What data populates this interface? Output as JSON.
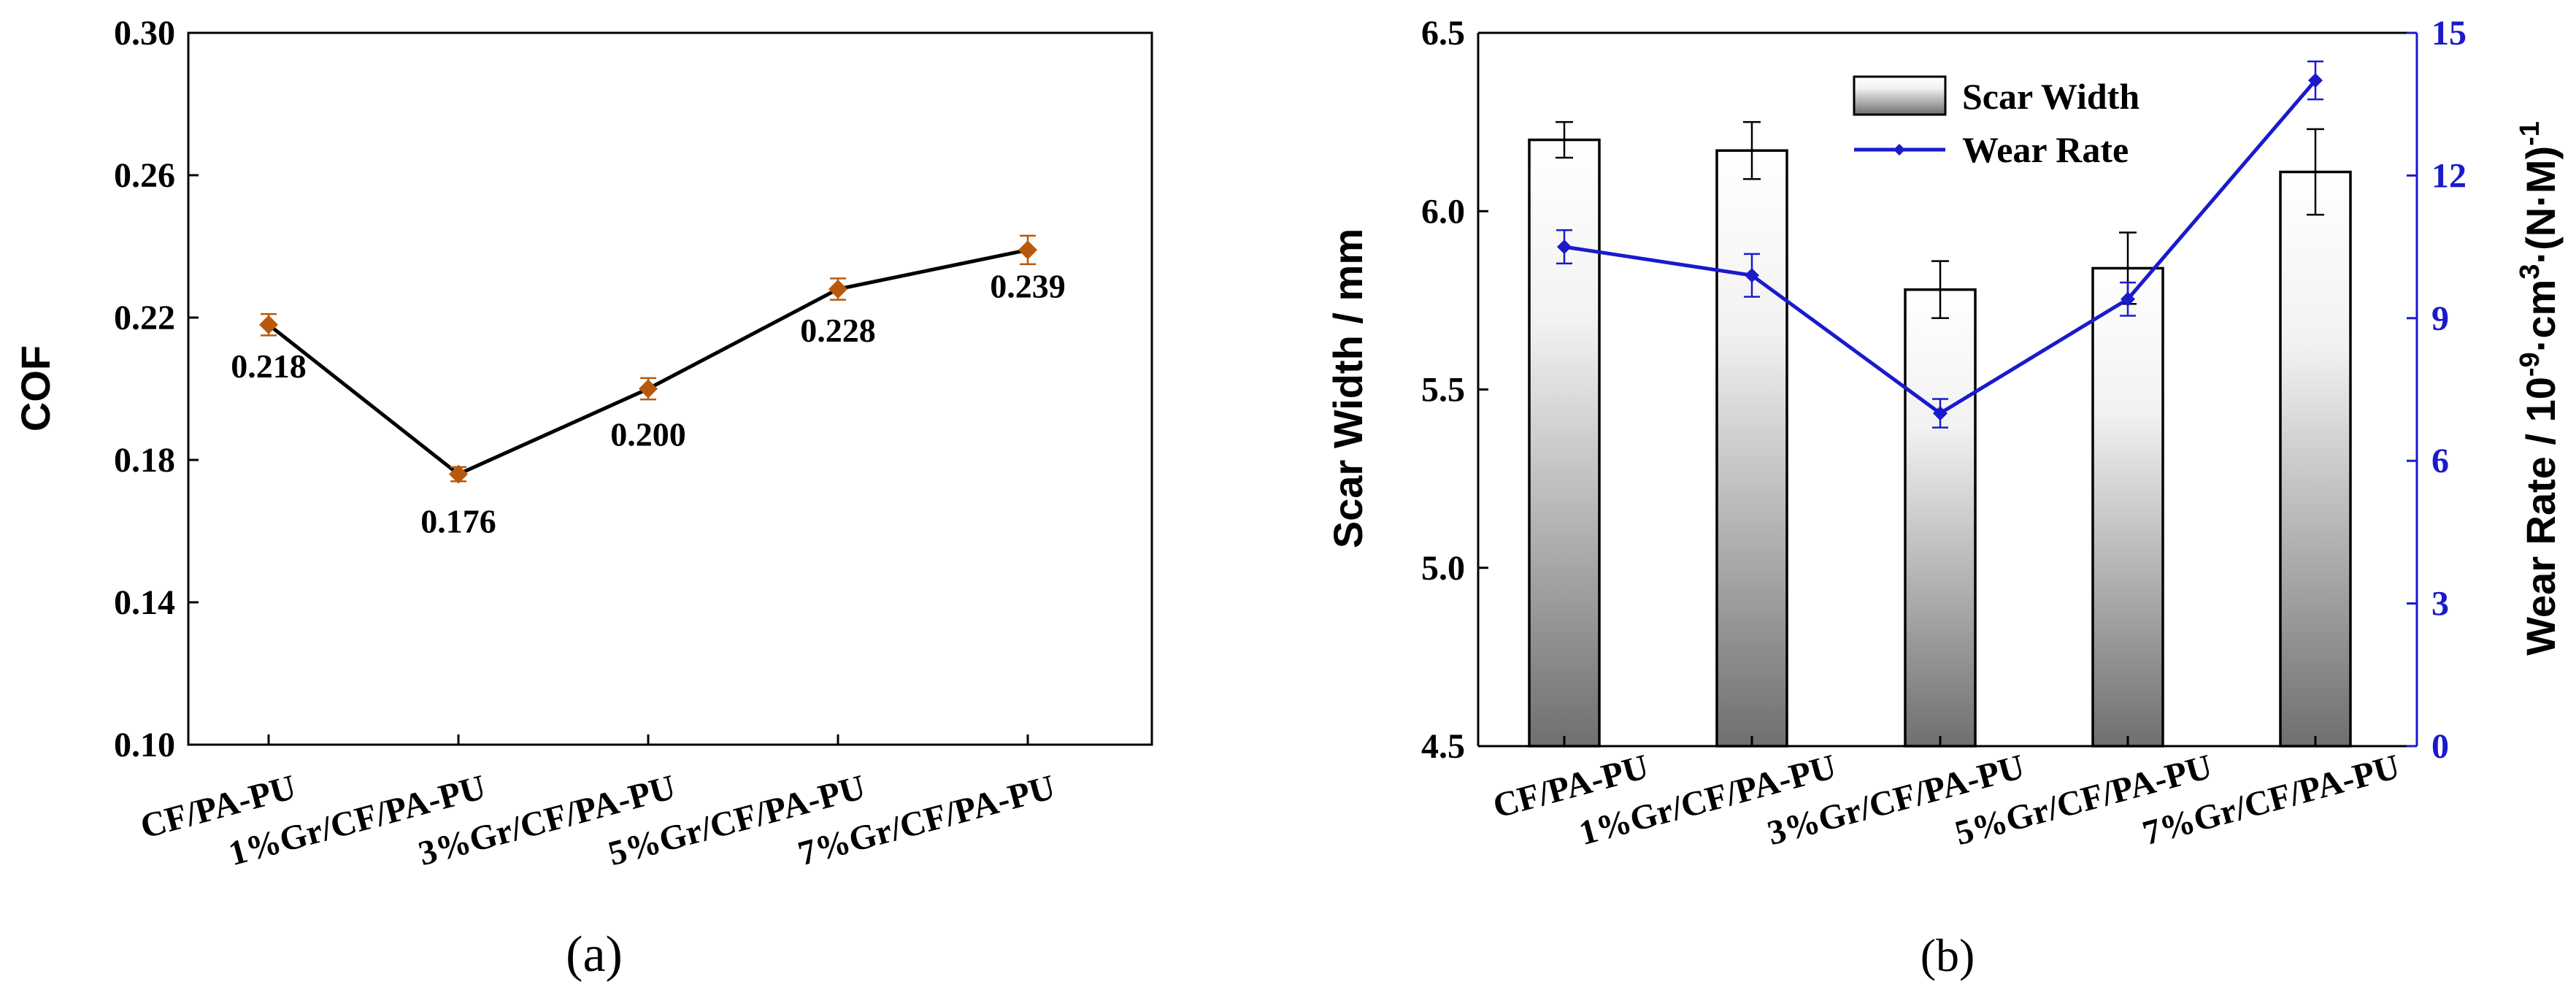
{
  "colors": {
    "cof_line": "#000000",
    "cof_marker": "#b8580c",
    "wear_line": "#1a1acc",
    "bar_edge": "#000000",
    "bar_top": "#ffffff",
    "bar_bottom": "#6f6f6f",
    "right_axis": "#1a1acc"
  },
  "chart_data": [
    {
      "type": "line",
      "caption": "(a)",
      "categories": [
        "CF/PA-PU",
        "1%Gr/CF/PA-PU",
        "3%Gr/CF/PA-PU",
        "5%Gr/CF/PA-PU",
        "7%Gr/CF/PA-PU"
      ],
      "series": [
        {
          "name": "COF",
          "values": [
            0.218,
            0.176,
            0.2,
            0.228,
            0.239
          ],
          "errors": [
            0.003,
            0.002,
            0.003,
            0.003,
            0.004
          ]
        }
      ],
      "data_labels": [
        "0.218",
        "0.176",
        "0.200",
        "0.228",
        "0.239"
      ],
      "ylabel": "COF",
      "ylim": [
        0.1,
        0.3
      ],
      "yticks": [
        0.1,
        0.14,
        0.18,
        0.22,
        0.26,
        0.3
      ],
      "ytick_labels": [
        "0.10",
        "0.14",
        "0.18",
        "0.22",
        "0.26",
        "0.30"
      ]
    },
    {
      "type": "bar",
      "caption": "(b)",
      "categories": [
        "CF/PA-PU",
        "1%Gr/CF/PA-PU",
        "3%Gr/CF/PA-PU",
        "5%Gr/CF/PA-PU",
        "7%Gr/CF/PA-PU"
      ],
      "series": [
        {
          "name": "Scar Width",
          "type": "bar",
          "axis": "left",
          "values": [
            6.2,
            6.17,
            5.78,
            5.84,
            6.11
          ],
          "errors": [
            0.05,
            0.08,
            0.08,
            0.1,
            0.12
          ]
        },
        {
          "name": "Wear Rate",
          "type": "line",
          "axis": "right",
          "values": [
            10.5,
            9.9,
            7.0,
            9.4,
            14.0
          ],
          "errors": [
            0.35,
            0.45,
            0.3,
            0.35,
            0.4
          ]
        }
      ],
      "legend": [
        "Scar Width",
        "Wear Rate"
      ],
      "ylabel": "Scar Width / mm",
      "ylim": [
        4.5,
        6.5
      ],
      "yticks": [
        4.5,
        5.0,
        5.5,
        6.0,
        6.5
      ],
      "ytick_labels": [
        "4.5",
        "5.0",
        "5.5",
        "6.0",
        "6.5"
      ],
      "y2label": {
        "prefix": "Wear Rate / 10",
        "exp1": "-9",
        "mid": "·cm",
        "exp2": "3",
        "tail": "·(N·M)",
        "exp3": "-1"
      },
      "y2lim": [
        0,
        15
      ],
      "y2ticks": [
        0,
        3,
        6,
        9,
        12,
        15
      ],
      "y2tick_labels": [
        "0",
        "3",
        "6",
        "9",
        "12",
        "15"
      ]
    }
  ]
}
